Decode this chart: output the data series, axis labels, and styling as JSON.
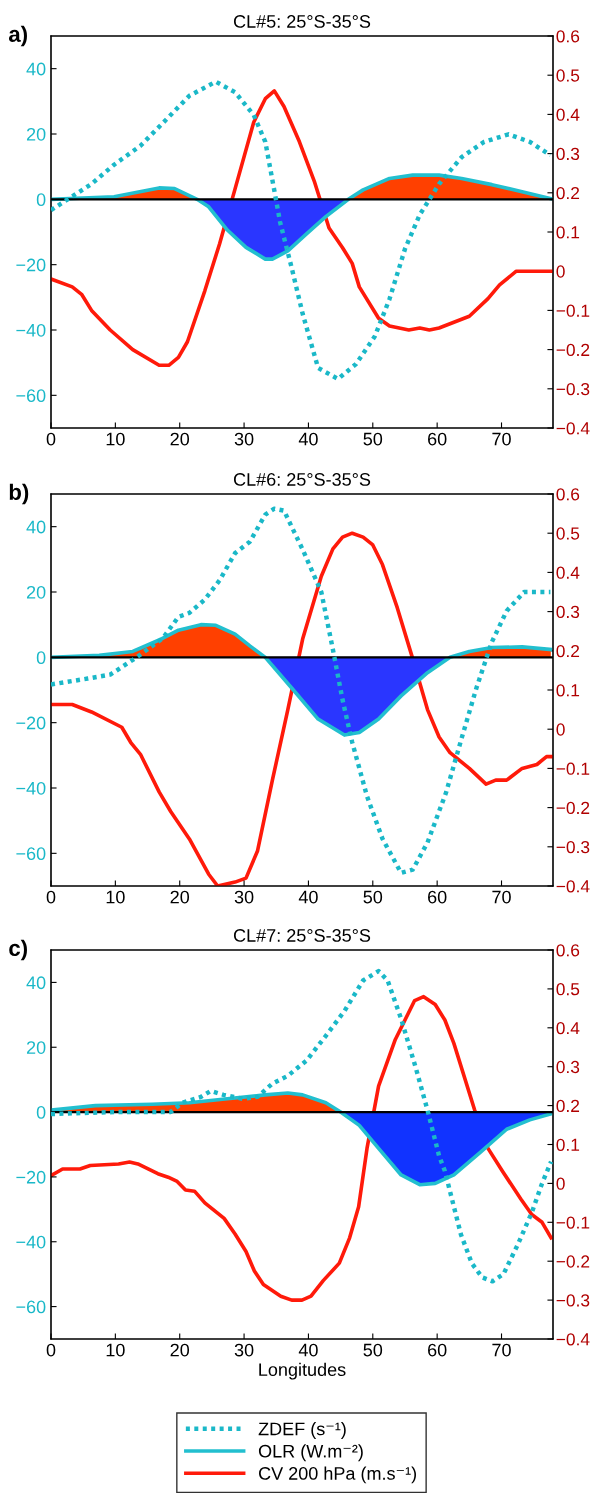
{
  "chart_data": [
    {
      "type": "line",
      "title": "CL#5: 25°S-35°S",
      "annotations": [
        "a)"
      ],
      "xlim": [
        0,
        78
      ],
      "xticks": [
        0,
        10,
        20,
        30,
        40,
        50,
        60,
        70
      ],
      "ylim": [
        -70,
        50
      ],
      "yticks": [
        {
          "value": -60,
          "label": "−60"
        },
        {
          "value": -40,
          "label": "−40"
        },
        {
          "value": -20,
          "label": "−20"
        },
        0,
        20,
        40
      ],
      "y2lim": [
        -0.4,
        0.6
      ],
      "y2ticks": [
        {
          "value": -0.4,
          "label": "−0.4"
        },
        {
          "value": -0.3,
          "label": "−0.3"
        },
        {
          "value": -0.2,
          "label": "−0.2"
        },
        {
          "value": -0.1,
          "label": "−0.1"
        },
        0,
        0.1,
        0.2,
        0.3,
        0.4,
        0.5,
        0.6
      ],
      "ref_lines": [
        {
          "axis": "y",
          "value": 0,
          "color": "#000000"
        }
      ],
      "series": [
        {
          "type": "area",
          "color": "#ff4000",
          "x": [
            0,
            9.8,
            16.8,
            19.2,
            22.7
          ],
          "values": [
            0,
            0.8,
            3.5,
            3.3,
            0
          ]
        },
        {
          "type": "area",
          "color": "#ff4000",
          "x": [
            46.2,
            48.5,
            52.6,
            56.2,
            60.3,
            63.8,
            68.5,
            73.2,
            77.6
          ],
          "values": [
            0,
            2.9,
            6.4,
            7.4,
            7.4,
            6.4,
            4.5,
            2.3,
            0.2
          ]
        },
        {
          "type": "area",
          "color": "#2a36ff",
          "x": [
            22.7,
            24.5,
            27.4,
            30.3,
            33.3,
            34.4,
            36.8,
            39.7,
            42.7,
            46.2
          ],
          "values": [
            0,
            -2.3,
            -9.4,
            -14.7,
            -18.3,
            -18.3,
            -15.8,
            -10.6,
            -5.3,
            0
          ]
        },
        {
          "line_style": "dotted",
          "color": "#1ab8c8",
          "x": [
            0,
            6.3,
            9.8,
            13.9,
            17.4,
            21.5,
            25.6,
            28.6,
            31.5,
            33.3,
            34.4,
            35.6,
            37.4,
            39.1,
            41.5,
            44.6,
            47.4,
            50.3,
            52.6,
            55,
            57.3,
            60.3,
            63.8,
            67.3,
            71.1,
            74.4,
            77.6
          ],
          "values": [
            -3.3,
            4.7,
            10.6,
            16.4,
            23.4,
            31.7,
            36,
            32.8,
            25.8,
            17.6,
            5.9,
            -7,
            -21,
            -35,
            -51.6,
            -55,
            -50.4,
            -42,
            -30.5,
            -15.2,
            -4.7,
            4.7,
            12.9,
            17.6,
            19.9,
            17.6,
            13.5
          ]
        },
        {
          "color": "#22bfcf",
          "x": [
            0,
            9.8,
            16.8,
            19.2,
            22.7,
            24.5,
            27.4,
            30.3,
            33.3,
            34.4,
            36.8,
            39.7,
            42.7,
            46.2,
            48.5,
            52.6,
            56.2,
            60.3,
            63.8,
            68.5,
            73.2,
            77.6
          ],
          "values": [
            0,
            0.8,
            3.5,
            3.3,
            0,
            -2.3,
            -9.4,
            -14.7,
            -18.3,
            -18.3,
            -15.8,
            -10.6,
            -5.3,
            0,
            2.9,
            6.4,
            7.4,
            7.4,
            6.4,
            4.5,
            2.3,
            0.2
          ]
        },
        {
          "axis": "y2",
          "color": "#ff1a0a",
          "x": [
            0,
            3.3,
            4.8,
            6.3,
            9.2,
            12.7,
            16.8,
            18.3,
            19.8,
            21.2,
            23.9,
            26.2,
            28.6,
            31.5,
            33.3,
            34.7,
            36.2,
            38.6,
            40.9,
            43.2,
            45.3,
            46.8,
            47.9,
            50.9,
            52.6,
            55.6,
            57.3,
            58.8,
            60.3,
            65,
            67.9,
            69.7,
            72.3,
            77.9
          ],
          "values": [
            -0.02,
            -0.04,
            -0.06,
            -0.1,
            -0.15,
            -0.2,
            -0.24,
            -0.24,
            -0.22,
            -0.18,
            -0.05,
            0.07,
            0.21,
            0.38,
            0.44,
            0.46,
            0.42,
            0.33,
            0.23,
            0.11,
            0.06,
            0.02,
            -0.04,
            -0.12,
            -0.14,
            -0.15,
            -0.145,
            -0.15,
            -0.145,
            -0.115,
            -0.07,
            -0.035,
            0,
            0
          ]
        }
      ]
    },
    {
      "type": "line",
      "title": "CL#6: 25°S-35°S",
      "annotations": [
        "b)"
      ],
      "xlim": [
        0,
        78
      ],
      "xticks": [
        0,
        10,
        20,
        30,
        40,
        50,
        60,
        70
      ],
      "ylim": [
        -70,
        50
      ],
      "yticks": [
        {
          "value": -60,
          "label": "−60"
        },
        {
          "value": -40,
          "label": "−40"
        },
        {
          "value": -20,
          "label": "−20"
        },
        0,
        20,
        40
      ],
      "y2lim": [
        -0.4,
        0.6
      ],
      "y2ticks": [
        {
          "value": -0.4,
          "label": "−0.4"
        },
        {
          "value": -0.3,
          "label": "−0.3"
        },
        {
          "value": -0.2,
          "label": "−0.2"
        },
        {
          "value": -0.1,
          "label": "−0.1"
        },
        0,
        0.1,
        0.2,
        0.3,
        0.4,
        0.5,
        0.6
      ],
      "ref_lines": [
        {
          "axis": "y",
          "value": 0,
          "color": "#000000"
        }
      ],
      "series": [
        {
          "type": "area",
          "color": "#ff4000",
          "x": [
            0,
            7.5,
            12.7,
            16.8,
            19.8,
            23.3,
            25.6,
            28.6,
            30.9,
            33.3
          ],
          "values": [
            0,
            0.6,
            1.8,
            5.3,
            8.3,
            10,
            9.8,
            7.1,
            3.5,
            0
          ]
        },
        {
          "type": "area",
          "color": "#ff4000",
          "x": [
            62,
            65,
            68.5,
            73.2,
            77.6
          ],
          "values": [
            0,
            1.8,
            3,
            3.2,
            2.4
          ]
        },
        {
          "type": "area",
          "color": "#2a36ff",
          "x": [
            33.3,
            37.4,
            41.5,
            45.6,
            47.9,
            50.9,
            54.4,
            58.5,
            62
          ],
          "values": [
            0,
            -9.4,
            -18.9,
            -23.8,
            -23,
            -18.9,
            -11.8,
            -4.7,
            0
          ]
        },
        {
          "line_style": "dotted",
          "color": "#1ab8c8",
          "x": [
            0,
            5.7,
            9.2,
            11,
            13.3,
            17.4,
            19.8,
            21.5,
            23.9,
            26.2,
            28.6,
            30.9,
            33.3,
            34.7,
            36.2,
            39.1,
            42,
            43.8,
            45.3,
            46.8,
            49.1,
            51.5,
            54.4,
            56.2,
            58.5,
            61.4,
            63.8,
            66.1,
            68.5,
            70.8,
            73.5,
            75.5,
            77.6
          ],
          "values": [
            -8.3,
            -6.5,
            -5.3,
            -3,
            0,
            5.9,
            12.4,
            13.6,
            17.7,
            23.6,
            31.9,
            35.4,
            43.7,
            45.5,
            44.9,
            33,
            20,
            2.4,
            -13,
            -26,
            -42.5,
            -55.5,
            -66,
            -65,
            -56.7,
            -41.3,
            -24.8,
            -9.4,
            4.7,
            14.2,
            20,
            20,
            20
          ]
        },
        {
          "color": "#22bfcf",
          "x": [
            0,
            7.5,
            12.7,
            16.8,
            19.8,
            23.3,
            25.6,
            28.6,
            30.9,
            33.3,
            37.4,
            41.5,
            45.6,
            47.9,
            50.9,
            54.4,
            58.5,
            62,
            65,
            68.5,
            73.2,
            77.6
          ],
          "values": [
            0,
            0.6,
            1.8,
            5.3,
            8.3,
            10,
            9.8,
            7.1,
            3.5,
            0,
            -9.4,
            -18.9,
            -23.8,
            -23,
            -18.9,
            -11.8,
            -4.7,
            0,
            1.8,
            3,
            3.2,
            2.4
          ]
        },
        {
          "axis": "y2",
          "color": "#ff1a0a",
          "x": [
            0,
            3.3,
            6.3,
            11,
            12.4,
            13.9,
            16.8,
            18.6,
            21.5,
            24.5,
            25.9,
            28.6,
            30.3,
            32.1,
            34.4,
            36.8,
            39.1,
            42,
            43.8,
            45.3,
            46.8,
            48.5,
            50,
            51.5,
            53.8,
            56.2,
            58.5,
            60.3,
            62,
            65,
            67.6,
            69.1,
            70.8,
            73.2,
            75.5,
            77,
            77.9
          ],
          "values": [
            0.063,
            0.063,
            0.044,
            0.005,
            -0.034,
            -0.064,
            -0.16,
            -0.21,
            -0.28,
            -0.37,
            -0.4,
            -0.39,
            -0.38,
            -0.31,
            -0.13,
            0.05,
            0.23,
            0.39,
            0.46,
            0.49,
            0.5,
            0.49,
            0.47,
            0.42,
            0.31,
            0.18,
            0.05,
            -0.02,
            -0.06,
            -0.1,
            -0.14,
            -0.13,
            -0.13,
            -0.1,
            -0.09,
            -0.07,
            -0.07
          ]
        }
      ]
    },
    {
      "type": "line",
      "title": "CL#7: 25°S-35°S",
      "xlabel": "Longitudes",
      "annotations": [
        "c)"
      ],
      "legend": "bottom",
      "xlim": [
        0,
        78
      ],
      "xticks": [
        0,
        10,
        20,
        30,
        40,
        50,
        60,
        70
      ],
      "ylim": [
        -70,
        50
      ],
      "yticks": [
        {
          "value": -60,
          "label": "−60"
        },
        {
          "value": -40,
          "label": "−40"
        },
        {
          "value": -20,
          "label": "−20"
        },
        0,
        20,
        40
      ],
      "y2lim": [
        -0.4,
        0.6
      ],
      "y2ticks": [
        {
          "value": -0.4,
          "label": "−0.4"
        },
        {
          "value": -0.3,
          "label": "−0.3"
        },
        {
          "value": -0.2,
          "label": "−0.2"
        },
        {
          "value": -0.1,
          "label": "−0.1"
        },
        0,
        0.1,
        0.2,
        0.3,
        0.4,
        0.5,
        0.6
      ],
      "ref_lines": [
        {
          "axis": "y",
          "value": 0,
          "color": "#000000"
        }
      ],
      "series": [
        {
          "type": "area",
          "color": "#ff4000",
          "x": [
            0,
            6.9,
            15.7,
            21.5,
            27.4,
            33.3,
            36.8,
            39.1,
            42.7,
            45
          ],
          "values": [
            0.6,
            2,
            2.4,
            2.9,
            4.1,
            5.3,
            5.9,
            5.3,
            2.9,
            0
          ]
        },
        {
          "type": "area",
          "color": "#1133ff",
          "x": [
            45,
            47.9,
            50.9,
            54.4,
            57.3,
            59.7,
            62.6,
            66.7,
            70.8,
            74.4,
            77.6
          ],
          "values": [
            0,
            -4.1,
            -11.2,
            -19.4,
            -22.4,
            -22,
            -19.4,
            -12.4,
            -5.3,
            -2.4,
            -0.6
          ]
        },
        {
          "name": "ZDEF (s⁻¹)",
          "line_style": "dotted",
          "color": "#1ab8c8",
          "x": [
            0,
            9.8,
            18.6,
            20.4,
            23.3,
            24.8,
            26.8,
            29.8,
            32.1,
            34.4,
            36.8,
            39.7,
            42.7,
            45.6,
            48.5,
            50.9,
            52.3,
            54.4,
            56.7,
            58.5,
            60.3,
            61.2,
            63.7,
            65.4,
            67,
            68.6,
            70.3,
            72.5,
            74.7,
            76.3,
            77.7
          ],
          "values": [
            -0.6,
            0,
            0,
            2.9,
            4.7,
            6.5,
            5.3,
            4.1,
            4.7,
            8.8,
            11.2,
            15.9,
            23.5,
            31.2,
            40.6,
            43.5,
            40.6,
            28.8,
            13.5,
            0.6,
            -13.5,
            -18.2,
            -37.8,
            -46.7,
            -51,
            -52.2,
            -50,
            -41,
            -31,
            -22,
            -15.3
          ]
        },
        {
          "name": "OLR (W.m⁻²)",
          "color": "#22bfcf",
          "x": [
            0,
            6.9,
            15.7,
            21.5,
            27.4,
            33.3,
            36.8,
            39.1,
            42.7,
            45,
            47.9,
            50.9,
            54.4,
            57.3,
            59.7,
            62.6,
            66.7,
            70.8,
            74.4,
            77.6
          ],
          "values": [
            0.6,
            2,
            2.4,
            2.9,
            4.1,
            5.3,
            5.9,
            5.3,
            2.9,
            0,
            -4.1,
            -11.2,
            -19.4,
            -22.4,
            -22,
            -19.4,
            -12.4,
            -5.3,
            -2.4,
            -0.6
          ]
        },
        {
          "name": "CV 200 hPa (m.s⁻¹)",
          "axis": "y2",
          "color": "#ff1a0a",
          "x": [
            0,
            1.8,
            4.5,
            6.1,
            10.5,
            12.2,
            13.5,
            16.6,
            18.2,
            19.6,
            20.9,
            22.3,
            23.9,
            26.9,
            28.6,
            30.3,
            31.6,
            33,
            35.7,
            37.4,
            39,
            40.4,
            42.3,
            44.8,
            46.4,
            47.8,
            49.1,
            50.9,
            53.5,
            56.5,
            57.9,
            59.7,
            61.2,
            62.6,
            65.8,
            67.9,
            70.2,
            73,
            74.7,
            76.3,
            77.7
          ],
          "values": [
            0.02,
            0.037,
            0.037,
            0.046,
            0.05,
            0.055,
            0.05,
            0.025,
            0.016,
            0.005,
            -0.017,
            -0.02,
            -0.05,
            -0.09,
            -0.13,
            -0.175,
            -0.225,
            -0.26,
            -0.29,
            -0.3,
            -0.3,
            -0.29,
            -0.25,
            -0.205,
            -0.14,
            -0.06,
            0.09,
            0.25,
            0.37,
            0.47,
            0.48,
            0.46,
            0.42,
            0.36,
            0.19,
            0.09,
            0.03,
            -0.04,
            -0.08,
            -0.1,
            -0.14
          ]
        }
      ]
    }
  ]
}
